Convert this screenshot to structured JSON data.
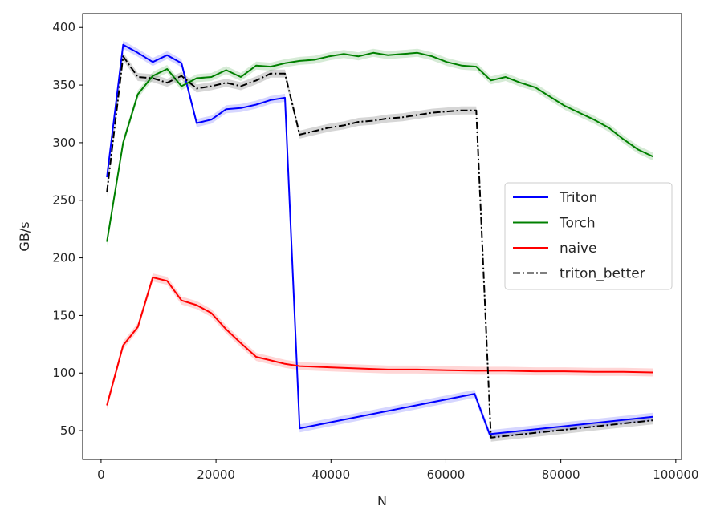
{
  "chart_data": {
    "type": "line",
    "title": "",
    "xlabel": "N",
    "ylabel": "GB/s",
    "xlim": [
      -3200,
      101000
    ],
    "ylim": [
      25,
      412
    ],
    "xticks": [
      0,
      20000,
      40000,
      60000,
      80000,
      100000
    ],
    "xtick_labels": [
      "0",
      "20000",
      "40000",
      "60000",
      "80000",
      "100000"
    ],
    "yticks": [
      50,
      100,
      150,
      200,
      250,
      300,
      350,
      400
    ],
    "ytick_labels": [
      "50",
      "100",
      "150",
      "200",
      "250",
      "300",
      "350",
      "400"
    ],
    "grid": false,
    "legend": {
      "placement": "center-right"
    },
    "series": [
      {
        "name": "Triton",
        "color": "#0000ff",
        "style": "solid",
        "confidence_band": true,
        "points": [
          [
            1024,
            270
          ],
          [
            3840,
            385
          ],
          [
            6400,
            378
          ],
          [
            9000,
            370
          ],
          [
            11500,
            376
          ],
          [
            14000,
            369
          ],
          [
            16640,
            317
          ],
          [
            19200,
            320
          ],
          [
            21760,
            329
          ],
          [
            24320,
            330
          ],
          [
            27000,
            333
          ],
          [
            29500,
            337
          ],
          [
            32000,
            339
          ],
          [
            34560,
            52
          ],
          [
            65000,
            82
          ],
          [
            67600,
            47
          ],
          [
            96000,
            62
          ]
        ]
      },
      {
        "name": "Torch",
        "color": "#008000",
        "style": "solid",
        "confidence_band": true,
        "points": [
          [
            1024,
            214
          ],
          [
            3840,
            300
          ],
          [
            6400,
            342
          ],
          [
            9000,
            358
          ],
          [
            11500,
            364
          ],
          [
            14000,
            349
          ],
          [
            16640,
            356
          ],
          [
            19200,
            357
          ],
          [
            21760,
            363
          ],
          [
            24320,
            357
          ],
          [
            27000,
            367
          ],
          [
            29500,
            366
          ],
          [
            32000,
            369
          ],
          [
            34560,
            371
          ],
          [
            37120,
            372
          ],
          [
            39700,
            375
          ],
          [
            42240,
            377
          ],
          [
            44800,
            375
          ],
          [
            47360,
            378
          ],
          [
            49900,
            376
          ],
          [
            52480,
            377
          ],
          [
            55040,
            378
          ],
          [
            57600,
            375
          ],
          [
            60160,
            370
          ],
          [
            62720,
            367
          ],
          [
            65280,
            366
          ],
          [
            67840,
            354
          ],
          [
            70400,
            357
          ],
          [
            72960,
            352
          ],
          [
            75520,
            348
          ],
          [
            78080,
            340
          ],
          [
            80640,
            332
          ],
          [
            83200,
            326
          ],
          [
            85760,
            320
          ],
          [
            88320,
            313
          ],
          [
            90880,
            303
          ],
          [
            93440,
            294
          ],
          [
            96000,
            288
          ]
        ]
      },
      {
        "name": "naive",
        "color": "#ff0000",
        "style": "solid",
        "confidence_band": true,
        "points": [
          [
            1024,
            72
          ],
          [
            3840,
            124
          ],
          [
            6400,
            140
          ],
          [
            9000,
            183
          ],
          [
            11500,
            180
          ],
          [
            14000,
            163
          ],
          [
            16640,
            159
          ],
          [
            19200,
            152
          ],
          [
            21760,
            138
          ],
          [
            24320,
            126
          ],
          [
            27000,
            114
          ],
          [
            29500,
            111
          ],
          [
            32000,
            108
          ],
          [
            34560,
            106
          ],
          [
            39700,
            105
          ],
          [
            44800,
            104
          ],
          [
            49900,
            103
          ],
          [
            55040,
            103
          ],
          [
            60160,
            102.5
          ],
          [
            65280,
            102
          ],
          [
            70400,
            102
          ],
          [
            75520,
            101.5
          ],
          [
            80640,
            101.5
          ],
          [
            85760,
            101
          ],
          [
            90880,
            101
          ],
          [
            96000,
            100.5
          ]
        ]
      },
      {
        "name": "triton_better",
        "color": "#000000",
        "style": "dashdot",
        "confidence_band": true,
        "points": [
          [
            1024,
            257
          ],
          [
            3840,
            375
          ],
          [
            6400,
            357
          ],
          [
            9000,
            356
          ],
          [
            11500,
            352
          ],
          [
            14000,
            358
          ],
          [
            16640,
            347
          ],
          [
            19200,
            349
          ],
          [
            21760,
            352
          ],
          [
            24320,
            349
          ],
          [
            27000,
            354
          ],
          [
            29500,
            360
          ],
          [
            32000,
            360
          ],
          [
            34560,
            307
          ],
          [
            37120,
            310
          ],
          [
            39700,
            313
          ],
          [
            42240,
            315
          ],
          [
            44800,
            318
          ],
          [
            47360,
            319
          ],
          [
            49900,
            321
          ],
          [
            52480,
            322
          ],
          [
            55040,
            324
          ],
          [
            57600,
            326
          ],
          [
            60160,
            327
          ],
          [
            62720,
            328
          ],
          [
            65280,
            328
          ],
          [
            67840,
            44
          ],
          [
            96000,
            59
          ]
        ]
      }
    ]
  }
}
